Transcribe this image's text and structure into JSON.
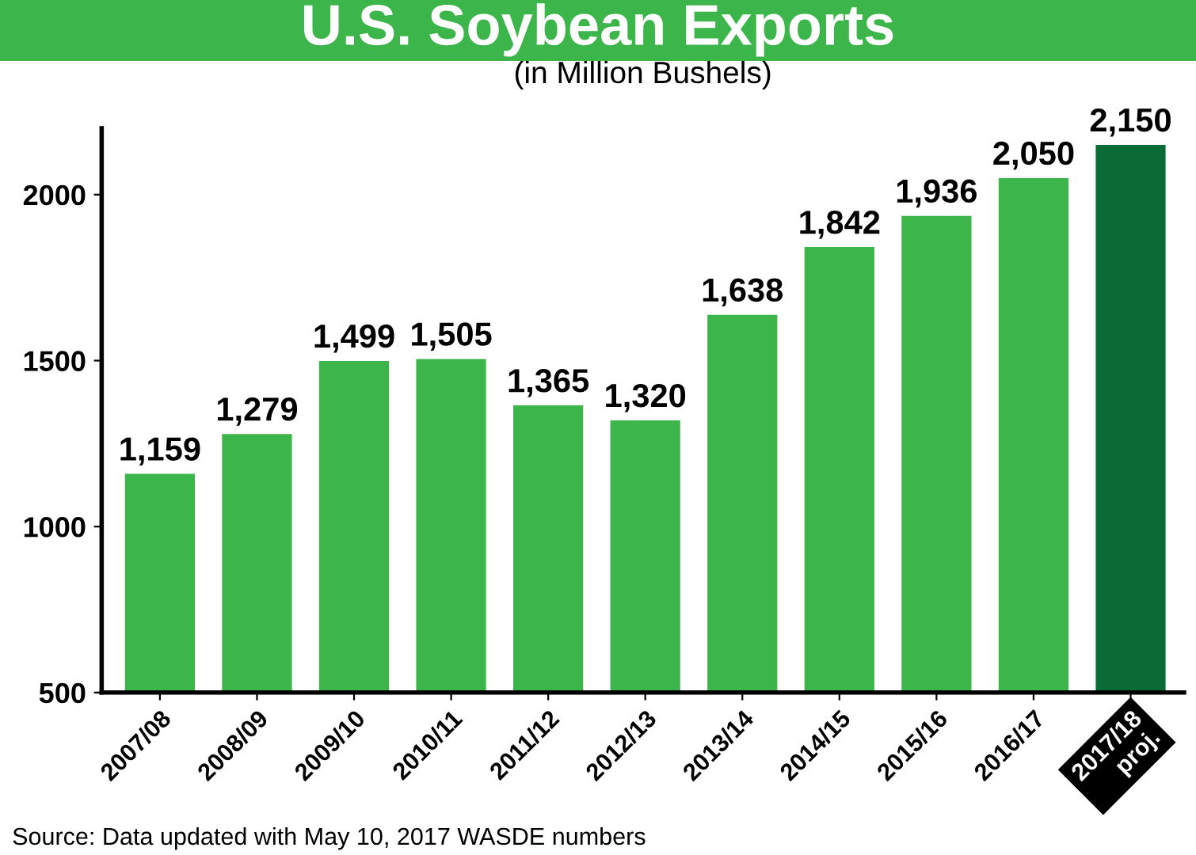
{
  "chart_data": {
    "type": "bar",
    "title": "U.S. Soybean Exports",
    "subtitle": "(in Million Bushels)",
    "categories": [
      "2007/08",
      "2008/09",
      "2009/10",
      "2010/11",
      "2011/12",
      "2012/13",
      "2013/14",
      "2014/15",
      "2015/16",
      "2016/17",
      "2017/18\nproj."
    ],
    "values": [
      1159,
      1279,
      1499,
      1505,
      1365,
      1320,
      1638,
      1842,
      1936,
      2050,
      2150
    ],
    "value_labels": [
      "1,159",
      "1,279",
      "1,499",
      "1,505",
      "1,365",
      "1,320",
      "1,638",
      "1,842",
      "1,936",
      "2,050",
      "2,150"
    ],
    "colors": [
      "#3cb54a",
      "#3cb54a",
      "#3cb54a",
      "#3cb54a",
      "#3cb54a",
      "#3cb54a",
      "#3cb54a",
      "#3cb54a",
      "#3cb54a",
      "#3cb54a",
      "#0b6b36"
    ],
    "ylim": [
      500,
      2200
    ],
    "yticks": [
      500,
      1000,
      1500,
      2000
    ],
    "grid": false,
    "legend": false,
    "annotations": [
      "Source: Data updated with May 10, 2017 WASDE numbers"
    ]
  }
}
